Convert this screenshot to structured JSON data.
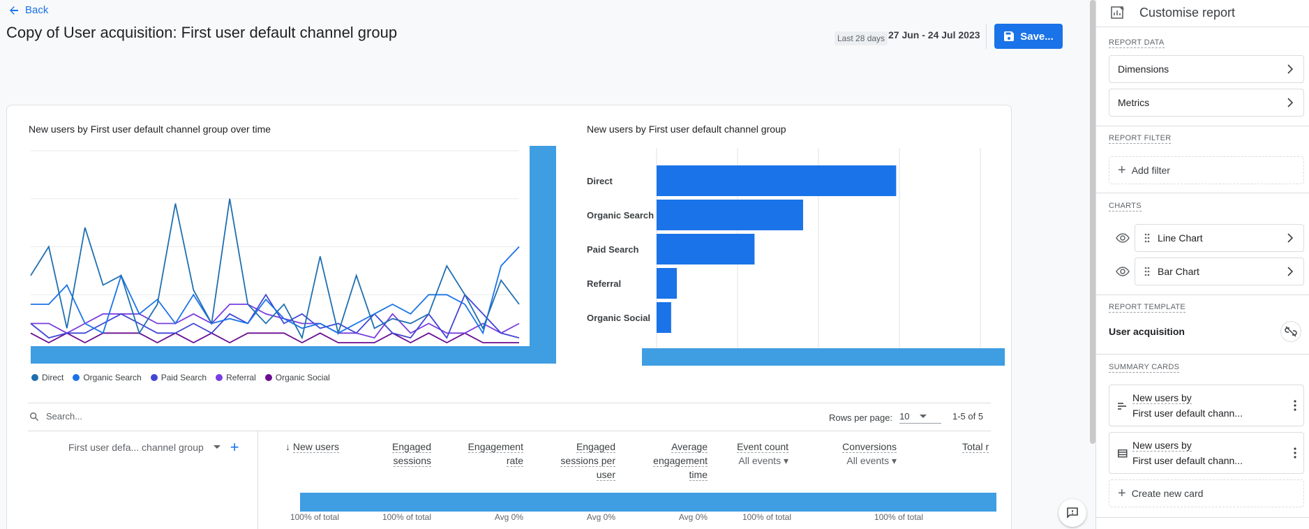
{
  "header": {
    "back_label": "Back",
    "title": "Copy of User acquisition: First user default channel group",
    "date_chip": "Last 28 days",
    "date_range": "27 Jun - 24 Jul 2023",
    "save_label": "Save..."
  },
  "line_chart": {
    "title": "New users by First user default channel group over time",
    "legend": [
      {
        "name": "Direct",
        "color": "#1f6fb0"
      },
      {
        "name": "Organic Search",
        "color": "#1a73e8"
      },
      {
        "name": "Paid Search",
        "color": "#4046d6"
      },
      {
        "name": "Referral",
        "color": "#7a3de0"
      },
      {
        "name": "Organic Social",
        "color": "#6a0d91"
      }
    ]
  },
  "bar_chart": {
    "title": "New users by First user default channel group"
  },
  "chart_data": [
    {
      "type": "line",
      "title": "New users by First user default channel group over time",
      "xlabel": "",
      "ylabel": "",
      "ylim": [
        0,
        4
      ],
      "x": [
        1,
        2,
        3,
        4,
        5,
        6,
        7,
        8,
        9,
        10,
        11,
        12,
        13,
        14,
        15,
        16,
        17,
        18,
        19,
        20,
        21,
        22,
        23,
        24,
        25,
        26,
        27,
        28
      ],
      "series": [
        {
          "name": "Direct",
          "color": "#1f6fb0",
          "values": [
            1.4,
            2,
            0.3,
            2.4,
            1.2,
            1.4,
            0.2,
            0.8,
            2.9,
            1.1,
            0.4,
            3.0,
            0.8,
            0.4,
            0.8,
            0.1,
            1.8,
            0.2,
            1.4,
            0.3,
            0.5,
            0.4,
            0.6,
            1.6,
            1.0,
            0.3,
            1.3,
            0.8
          ]
        },
        {
          "name": "Organic Search",
          "color": "#1a73e8",
          "values": [
            0.8,
            0.8,
            1.2,
            0.4,
            0.2,
            1.4,
            0.6,
            0.9,
            0.4,
            1.0,
            0.4,
            0.5,
            0.4,
            0.9,
            0.5,
            0.3,
            0.4,
            0.2,
            0.4,
            0.6,
            0.8,
            0.6,
            1.0,
            1.0,
            0.8,
            0.2,
            1.6,
            2.0
          ]
        },
        {
          "name": "Paid Search",
          "color": "#4046d6",
          "values": [
            0.4,
            0.1,
            0.2,
            0.2,
            0.4,
            0.6,
            0.4,
            0.2,
            0.2,
            0.4,
            0.2,
            0.6,
            0.4,
            1.0,
            0.4,
            0.6,
            0.3,
            0.4,
            0.2,
            0.6,
            0.2,
            0.1,
            0.6,
            0.1,
            1.0,
            0.6,
            0.2,
            0.1
          ]
        },
        {
          "name": "Referral",
          "color": "#7a3de0",
          "values": [
            0.4,
            0.4,
            0.2,
            0.4,
            0.6,
            0.6,
            0.6,
            0.4,
            0.4,
            0.6,
            0.4,
            0.8,
            0.8,
            0.6,
            0.5,
            0.4,
            0.4,
            0.2,
            0.2,
            0.1,
            0.6,
            0.2,
            0.4,
            0.2,
            0.2,
            0.4,
            0.2,
            0.4
          ]
        },
        {
          "name": "Organic Social",
          "color": "#6a0d91",
          "values": [
            0.2,
            0,
            0.2,
            0,
            0.2,
            0.2,
            0.2,
            0,
            0.2,
            0,
            0.2,
            0,
            0.2,
            0.2,
            0.2,
            0,
            0.2,
            0,
            0,
            0,
            0.2,
            0,
            0.2,
            0,
            0.2,
            0,
            0,
            0
          ]
        }
      ]
    },
    {
      "type": "bar",
      "title": "New users by First user default channel group",
      "xlabel": "",
      "ylabel": "",
      "xlim": [
        0,
        40
      ],
      "categories": [
        "Direct",
        "Organic Search",
        "Paid Search",
        "Referral",
        "Organic Social"
      ],
      "values": [
        29.6,
        18.1,
        12.1,
        2.5,
        1.8
      ],
      "color": "#1a73e8"
    }
  ],
  "table": {
    "search_placeholder": "Search...",
    "rows_per_page_label": "Rows per page:",
    "rows_per_page_value": "10",
    "pagination": "1-5 of 5",
    "dimension_header": "First user defa... channel group",
    "columns": [
      {
        "lines": [
          "New users"
        ],
        "total": "100% of total"
      },
      {
        "lines": [
          "Engaged",
          "sessions"
        ],
        "total": "100% of total"
      },
      {
        "lines": [
          "Engagement",
          "rate"
        ],
        "total": "Avg 0%"
      },
      {
        "lines": [
          "Engaged",
          "sessions per",
          "user"
        ],
        "total": "Avg 0%"
      },
      {
        "lines": [
          "Average",
          "engagement",
          "time"
        ],
        "total": "Avg 0%"
      },
      {
        "lines": [
          "Event count"
        ],
        "sub": "All events",
        "total": "100% of total"
      },
      {
        "lines": [
          "Conversions"
        ],
        "sub": "All events",
        "total": "100% of total"
      },
      {
        "lines": [
          "Total r"
        ]
      }
    ]
  },
  "panel": {
    "title": "Customise report",
    "report_data_label": "REPORT DATA",
    "dimensions_label": "Dimensions",
    "metrics_label": "Metrics",
    "report_filter_label": "REPORT FILTER",
    "add_filter_label": "Add filter",
    "charts_label": "CHARTS",
    "charts": [
      "Line Chart",
      "Bar Chart"
    ],
    "report_template_label": "REPORT TEMPLATE",
    "template_name": "User acquisition",
    "summary_cards_label": "SUMMARY CARDS",
    "summary_cards": [
      {
        "line1": "New users by",
        "line2": "First user default chann..."
      },
      {
        "line1": "New users by",
        "line2": "First user default chann..."
      }
    ],
    "create_card_label": "Create new card"
  }
}
